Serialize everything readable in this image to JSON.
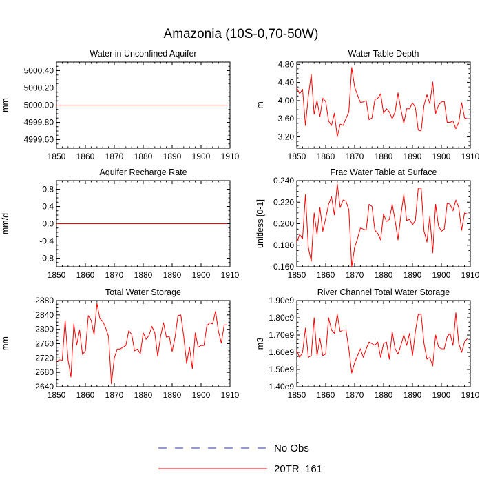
{
  "title": "Amazonia (10S-0,70-50W)",
  "legend": [
    {
      "label": "No Obs",
      "color": "#2a2ac8",
      "dash": true
    },
    {
      "label": "20TR_161",
      "color": "#ff0000",
      "dash": false
    }
  ],
  "chart_data": [
    {
      "type": "line",
      "title": "Water in Unconfined Aquifer",
      "ylabel": "mm",
      "xlim": [
        1850,
        1910
      ],
      "ylim": [
        4999.5,
        5000.5
      ],
      "xticks": [
        1850,
        1860,
        1870,
        1880,
        1890,
        1900,
        1910
      ],
      "yticks": [
        4999.6,
        4999.8,
        5000.0,
        5000.2,
        5000.4
      ],
      "ytick_labels": [
        "4999.60",
        "4999.80",
        "5000.00",
        "5000.20",
        "5000.40"
      ],
      "series": [
        {
          "name": "20TR_161",
          "x_start": 1850,
          "values": "const:5000.0"
        }
      ]
    },
    {
      "type": "line",
      "title": "Water Table Depth",
      "ylabel": "m",
      "xlim": [
        1850,
        1910
      ],
      "ylim": [
        2.95,
        4.85
      ],
      "xticks": [
        1850,
        1860,
        1870,
        1880,
        1890,
        1900,
        1910
      ],
      "yticks": [
        3.2,
        3.6,
        4.0,
        4.4,
        4.8
      ],
      "ytick_labels": [
        "3.20",
        "3.60",
        "4.00",
        "4.40",
        "4.80"
      ],
      "series": [
        {
          "name": "20TR_161",
          "x_start": 1850,
          "values": [
            4.28,
            4.15,
            4.25,
            3.45,
            4.1,
            4.58,
            3.7,
            4.0,
            3.65,
            4.05,
            3.98,
            3.55,
            3.45,
            3.72,
            3.2,
            3.48,
            3.45,
            3.6,
            3.75,
            4.73,
            4.3,
            4.12,
            3.96,
            3.97,
            4.0,
            3.58,
            3.62,
            4.02,
            4.05,
            4.15,
            3.72,
            3.82,
            3.75,
            3.6,
            3.75,
            4.17,
            3.8,
            3.5,
            3.82,
            3.82,
            3.95,
            3.85,
            3.35,
            3.33,
            3.9,
            4.13,
            3.93,
            4.41,
            3.71,
            3.9,
            3.97,
            3.98,
            3.52,
            3.52,
            3.55,
            3.38,
            3.52,
            3.95,
            3.62,
            3.6
          ]
        }
      ]
    },
    {
      "type": "line",
      "title": "Aquifer Recharge Rate",
      "ylabel": "mm/d",
      "xlim": [
        1850,
        1910
      ],
      "ylim": [
        -1.0,
        1.0
      ],
      "xticks": [
        1850,
        1860,
        1870,
        1880,
        1890,
        1900,
        1910
      ],
      "yticks": [
        -0.8,
        -0.4,
        0.0,
        0.4,
        0.8
      ],
      "ytick_labels": [
        "-0.8",
        "-0.4",
        "0.0",
        "0.4",
        "0.8"
      ],
      "series": [
        {
          "name": "20TR_161",
          "x_start": 1850,
          "values": "const:0.0"
        }
      ]
    },
    {
      "type": "line",
      "title": "Frac Water Table at Surface",
      "ylabel": "unitless [0-1]",
      "xlim": [
        1850,
        1910
      ],
      "ylim": [
        0.16,
        0.24
      ],
      "xticks": [
        1850,
        1860,
        1870,
        1880,
        1890,
        1900,
        1910
      ],
      "yticks": [
        0.16,
        0.18,
        0.2,
        0.22,
        0.24
      ],
      "ytick_labels": [
        "0.160",
        "0.180",
        "0.200",
        "0.220",
        "0.240"
      ],
      "series": [
        {
          "name": "20TR_161",
          "x_start": 1850,
          "values": [
            0.183,
            0.19,
            0.186,
            0.227,
            0.178,
            0.165,
            0.21,
            0.19,
            0.215,
            0.193,
            0.205,
            0.218,
            0.225,
            0.208,
            0.237,
            0.215,
            0.222,
            0.221,
            0.213,
            0.16,
            0.178,
            0.186,
            0.196,
            0.195,
            0.194,
            0.218,
            0.216,
            0.194,
            0.191,
            0.185,
            0.209,
            0.202,
            0.204,
            0.218,
            0.203,
            0.185,
            0.208,
            0.227,
            0.203,
            0.204,
            0.199,
            0.203,
            0.233,
            0.233,
            0.193,
            0.183,
            0.207,
            0.173,
            0.218,
            0.198,
            0.193,
            0.195,
            0.219,
            0.218,
            0.212,
            0.222,
            0.215,
            0.194,
            0.21,
            0.209
          ]
        }
      ]
    },
    {
      "type": "line",
      "title": "Total Water Storage",
      "ylabel": "mm",
      "xlim": [
        1850,
        1910
      ],
      "ylim": [
        2640,
        2880
      ],
      "xticks": [
        1850,
        1860,
        1870,
        1880,
        1890,
        1900,
        1910
      ],
      "yticks": [
        2640,
        2680,
        2720,
        2760,
        2800,
        2840,
        2880
      ],
      "ytick_labels": [
        "2640",
        "2680",
        "2720",
        "2760",
        "2800",
        "2840",
        "2880"
      ],
      "series": [
        {
          "name": "20TR_161",
          "x_start": 1850,
          "values": [
            2710,
            2715,
            2714,
            2825,
            2715,
            2667,
            2815,
            2756,
            2798,
            2730,
            2740,
            2838,
            2825,
            2785,
            2872,
            2830,
            2822,
            2804,
            2780,
            2648,
            2720,
            2745,
            2745,
            2750,
            2755,
            2796,
            2786,
            2740,
            2745,
            2732,
            2790,
            2772,
            2783,
            2808,
            2790,
            2725,
            2780,
            2818,
            2778,
            2780,
            2738,
            2778,
            2838,
            2840,
            2780,
            2705,
            2750,
            2690,
            2790,
            2750,
            2755,
            2755,
            2810,
            2818,
            2815,
            2850,
            2795,
            2762,
            2812,
            2812
          ]
        }
      ]
    },
    {
      "type": "line",
      "title": "River Channel Total Water Storage",
      "ylabel": "m3",
      "xlim": [
        1850,
        1910
      ],
      "ylim": [
        1.4,
        1.9
      ],
      "xticks": [
        1850,
        1860,
        1870,
        1880,
        1890,
        1900,
        1910
      ],
      "yticks": [
        1.4,
        1.5,
        1.6,
        1.7,
        1.8,
        1.9
      ],
      "ytick_labels": [
        "1.40e9",
        "1.50e9",
        "1.60e9",
        "1.70e9",
        "1.80e9",
        "1.90e9"
      ],
      "series": [
        {
          "name": "20TR_161",
          "x_start": 1850,
          "values": [
            1.61,
            1.57,
            1.6,
            1.74,
            1.57,
            1.58,
            1.8,
            1.58,
            1.68,
            1.58,
            1.59,
            1.8,
            1.73,
            1.71,
            1.82,
            1.72,
            1.73,
            1.73,
            1.62,
            1.48,
            1.54,
            1.58,
            1.62,
            1.57,
            1.62,
            1.66,
            1.65,
            1.64,
            1.66,
            1.57,
            1.65,
            1.66,
            1.56,
            1.72,
            1.62,
            1.59,
            1.64,
            1.7,
            1.64,
            1.71,
            1.58,
            1.72,
            1.82,
            1.82,
            1.65,
            1.56,
            1.57,
            1.52,
            1.7,
            1.63,
            1.62,
            1.62,
            1.69,
            1.71,
            1.64,
            1.83,
            1.65,
            1.6,
            1.66,
            1.68
          ]
        }
      ]
    }
  ]
}
